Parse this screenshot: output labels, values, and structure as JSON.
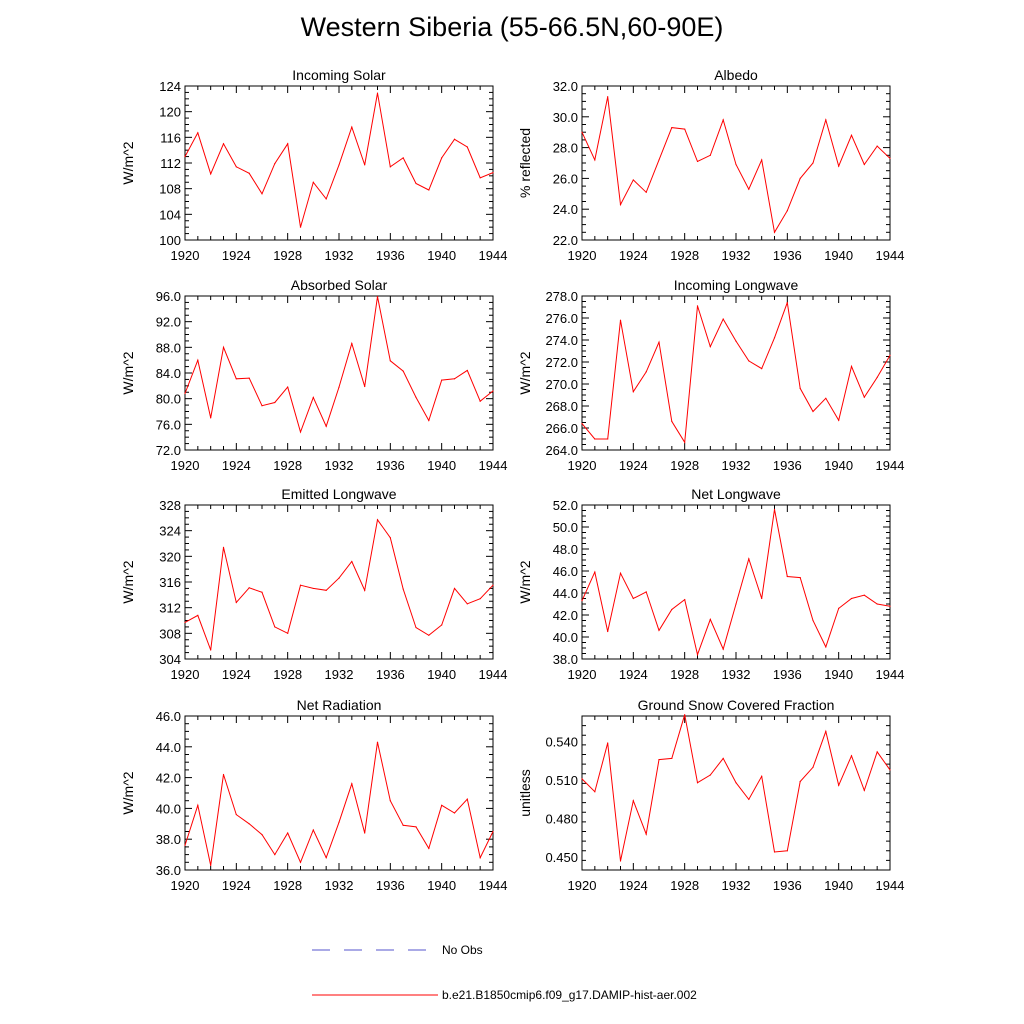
{
  "title": "Western Siberia (55-66.5N,60-90E)",
  "colors": {
    "model_line": "#ff0000",
    "obs_line": "#5555cc",
    "axis": "#000000"
  },
  "legend": {
    "obs_label": "No Obs",
    "model_label": "b.e21.B1850cmip6.f09_g17.DAMIP-hist-aer.002"
  },
  "chart_data": [
    {
      "type": "line",
      "title": "Incoming Solar",
      "xlabel": "",
      "ylabel": "W/m^2",
      "xlim": [
        1920,
        1944
      ],
      "ylim": [
        100,
        124
      ],
      "xticks": [
        "1920",
        "1924",
        "1928",
        "1932",
        "1936",
        "1940",
        "1944"
      ],
      "yticks": [
        "100",
        "104",
        "108",
        "112",
        "116",
        "120",
        "124"
      ],
      "x": [
        1920,
        1921,
        1922,
        1923,
        1924,
        1925,
        1926,
        1927,
        1928,
        1929,
        1930,
        1931,
        1932,
        1933,
        1934,
        1935,
        1936,
        1937,
        1938,
        1939,
        1940,
        1941,
        1942,
        1943,
        1944
      ],
      "series": [
        {
          "values": [
            113.0,
            116.7,
            110.3,
            115.0,
            111.4,
            110.4,
            107.2,
            111.9,
            115.0,
            102.0,
            109.0,
            106.4,
            111.7,
            117.6,
            111.7,
            122.9,
            111.4,
            112.8,
            108.8,
            107.8,
            112.8,
            115.7,
            114.5,
            109.7,
            110.5
          ]
        }
      ],
      "grid": false
    },
    {
      "type": "line",
      "title": "Albedo",
      "xlabel": "",
      "ylabel": "% reflected",
      "xlim": [
        1920,
        1944
      ],
      "ylim": [
        22,
        32
      ],
      "xticks": [
        "1920",
        "1924",
        "1928",
        "1932",
        "1936",
        "1940",
        "1944"
      ],
      "yticks": [
        "22.0",
        "24.0",
        "26.0",
        "28.0",
        "30.0",
        "32.0"
      ],
      "x": [
        1920,
        1921,
        1922,
        1923,
        1924,
        1925,
        1926,
        1927,
        1928,
        1929,
        1930,
        1931,
        1932,
        1933,
        1934,
        1935,
        1936,
        1937,
        1938,
        1939,
        1940,
        1941,
        1942,
        1943,
        1944
      ],
      "series": [
        {
          "values": [
            29.0,
            27.2,
            31.3,
            24.3,
            25.9,
            25.1,
            27.2,
            29.3,
            29.2,
            27.1,
            27.5,
            29.8,
            26.9,
            25.3,
            27.2,
            22.5,
            23.9,
            26.0,
            27.0,
            29.8,
            26.8,
            28.8,
            26.9,
            28.1,
            27.3
          ]
        }
      ],
      "grid": false
    },
    {
      "type": "line",
      "title": "Absorbed Solar",
      "xlabel": "",
      "ylabel": "W/m^2",
      "xlim": [
        1920,
        1944
      ],
      "ylim": [
        72,
        96
      ],
      "xticks": [
        "1920",
        "1924",
        "1928",
        "1932",
        "1936",
        "1940",
        "1944"
      ],
      "yticks": [
        "72.0",
        "76.0",
        "80.0",
        "84.0",
        "88.0",
        "92.0",
        "96.0"
      ],
      "x": [
        1920,
        1921,
        1922,
        1923,
        1924,
        1925,
        1926,
        1927,
        1928,
        1929,
        1930,
        1931,
        1932,
        1933,
        1934,
        1935,
        1936,
        1937,
        1938,
        1939,
        1940,
        1941,
        1942,
        1943,
        1944
      ],
      "series": [
        {
          "values": [
            80.8,
            86.0,
            77.0,
            88.0,
            83.1,
            83.2,
            78.9,
            79.4,
            81.8,
            74.8,
            80.2,
            75.7,
            81.8,
            88.6,
            81.9,
            95.9,
            85.9,
            84.3,
            80.2,
            76.6,
            82.9,
            83.1,
            84.4,
            79.6,
            81.2
          ]
        }
      ],
      "grid": false
    },
    {
      "type": "line",
      "title": "Incoming Longwave",
      "xlabel": "",
      "ylabel": "W/m^2",
      "xlim": [
        1920,
        1944
      ],
      "ylim": [
        264,
        278
      ],
      "xticks": [
        "1920",
        "1924",
        "1928",
        "1932",
        "1936",
        "1940",
        "1944"
      ],
      "yticks": [
        "264.0",
        "266.0",
        "268.0",
        "270.0",
        "272.0",
        "274.0",
        "276.0",
        "278.0"
      ],
      "x": [
        1920,
        1921,
        1922,
        1923,
        1924,
        1925,
        1926,
        1927,
        1928,
        1929,
        1930,
        1931,
        1932,
        1933,
        1934,
        1935,
        1936,
        1937,
        1938,
        1939,
        1940,
        1941,
        1942,
        1943,
        1944
      ],
      "series": [
        {
          "values": [
            266.4,
            265.0,
            265.0,
            275.8,
            269.3,
            271.1,
            273.8,
            266.6,
            264.7,
            277.1,
            273.4,
            275.9,
            273.9,
            272.1,
            271.4,
            274.2,
            277.4,
            269.6,
            267.5,
            268.7,
            266.7,
            271.6,
            268.8,
            270.6,
            272.6
          ]
        }
      ],
      "grid": false
    },
    {
      "type": "line",
      "title": "Emitted Longwave",
      "xlabel": "",
      "ylabel": "W/m^2",
      "xlim": [
        1920,
        1944
      ],
      "ylim": [
        304,
        328
      ],
      "xticks": [
        "1920",
        "1924",
        "1928",
        "1932",
        "1936",
        "1940",
        "1944"
      ],
      "yticks": [
        "304",
        "308",
        "312",
        "316",
        "320",
        "324",
        "328"
      ],
      "x": [
        1920,
        1921,
        1922,
        1923,
        1924,
        1925,
        1926,
        1927,
        1928,
        1929,
        1930,
        1931,
        1932,
        1933,
        1934,
        1935,
        1936,
        1937,
        1938,
        1939,
        1940,
        1941,
        1942,
        1943,
        1944
      ],
      "series": [
        {
          "values": [
            309.7,
            310.8,
            305.4,
            321.4,
            312.8,
            315.1,
            314.4,
            309.0,
            308.0,
            315.5,
            315.0,
            314.7,
            316.6,
            319.2,
            314.7,
            325.7,
            322.9,
            314.9,
            308.9,
            307.7,
            309.3,
            315.0,
            312.6,
            313.4,
            315.5
          ]
        }
      ],
      "grid": false
    },
    {
      "type": "line",
      "title": "Net Longwave",
      "xlabel": "",
      "ylabel": "W/m^2",
      "xlim": [
        1920,
        1944
      ],
      "ylim": [
        38,
        52
      ],
      "xticks": [
        "1920",
        "1924",
        "1928",
        "1932",
        "1936",
        "1940",
        "1944"
      ],
      "yticks": [
        "38.0",
        "40.0",
        "42.0",
        "44.0",
        "46.0",
        "48.0",
        "50.0",
        "52.0"
      ],
      "x": [
        1920,
        1921,
        1922,
        1923,
        1924,
        1925,
        1926,
        1927,
        1928,
        1929,
        1930,
        1931,
        1932,
        1933,
        1934,
        1935,
        1936,
        1937,
        1938,
        1939,
        1940,
        1941,
        1942,
        1943,
        1944
      ],
      "series": [
        {
          "values": [
            43.3,
            45.9,
            40.5,
            45.8,
            43.5,
            44.1,
            40.6,
            42.5,
            43.4,
            38.4,
            41.6,
            38.9,
            43.0,
            47.1,
            43.5,
            51.6,
            45.5,
            45.4,
            41.5,
            39.1,
            42.6,
            43.5,
            43.8,
            43.0,
            42.8
          ]
        }
      ],
      "grid": false
    },
    {
      "type": "line",
      "title": "Net Radiation",
      "xlabel": "",
      "ylabel": "W/m^2",
      "xlim": [
        1920,
        1944
      ],
      "ylim": [
        36,
        46
      ],
      "xticks": [
        "1920",
        "1924",
        "1928",
        "1932",
        "1936",
        "1940",
        "1944"
      ],
      "yticks": [
        "36.0",
        "38.0",
        "40.0",
        "42.0",
        "44.0",
        "46.0"
      ],
      "x": [
        1920,
        1921,
        1922,
        1923,
        1924,
        1925,
        1926,
        1927,
        1928,
        1929,
        1930,
        1931,
        1932,
        1933,
        1934,
        1935,
        1936,
        1937,
        1938,
        1939,
        1940,
        1941,
        1942,
        1943,
        1944
      ],
      "series": [
        {
          "values": [
            37.6,
            40.2,
            36.3,
            42.2,
            39.6,
            39.0,
            38.3,
            37.0,
            38.4,
            36.5,
            38.6,
            36.8,
            39.1,
            41.6,
            38.4,
            44.3,
            40.5,
            38.9,
            38.8,
            37.4,
            40.2,
            39.7,
            40.6,
            36.8,
            38.5
          ]
        }
      ],
      "grid": false
    },
    {
      "type": "line",
      "title": "Ground Snow Covered Fraction",
      "xlabel": "",
      "ylabel": "unitless",
      "xlim": [
        1920,
        1944
      ],
      "ylim": [
        0.44,
        0.56
      ],
      "xticks": [
        "1920",
        "1924",
        "1928",
        "1932",
        "1936",
        "1940",
        "1944"
      ],
      "yticks": [
        "0.450",
        "0.480",
        "0.510",
        "0.540"
      ],
      "x": [
        1920,
        1921,
        1922,
        1923,
        1924,
        1925,
        1926,
        1927,
        1928,
        1929,
        1930,
        1931,
        1932,
        1933,
        1934,
        1935,
        1936,
        1937,
        1938,
        1939,
        1940,
        1941,
        1942,
        1943,
        1944
      ],
      "series": [
        {
          "values": [
            0.511,
            0.501,
            0.539,
            0.447,
            0.494,
            0.468,
            0.526,
            0.527,
            0.561,
            0.508,
            0.514,
            0.527,
            0.508,
            0.495,
            0.513,
            0.454,
            0.455,
            0.509,
            0.52,
            0.548,
            0.506,
            0.529,
            0.502,
            0.532,
            0.518
          ]
        }
      ],
      "grid": false
    }
  ]
}
